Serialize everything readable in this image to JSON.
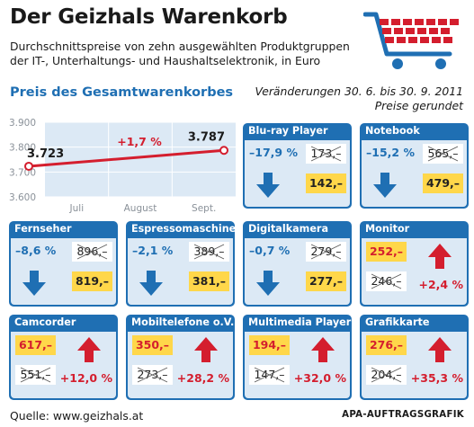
{
  "header": {
    "title": "Der Geizhals Warenkorb",
    "subtitle": "Durchschnittspreise von zehn ausgewählten Produktgruppen der IT-, Unterhaltungs- und Haushaltselektronik, in Euro",
    "chart_heading": "Preis des Gesamtwarenkorbes",
    "change_period": "Veränderungen 30. 6. bis 30. 9. 2011",
    "rounding_note": "Preise gerundet"
  },
  "colors": {
    "blue": "#1f6fb3",
    "light_blue": "#dce9f5",
    "red": "#d41e2e",
    "yellow": "#ffd74a"
  },
  "chart_data": {
    "type": "line",
    "x": [
      "Juli",
      "August",
      "Sept."
    ],
    "y_ticks": [
      "3.900",
      "3.800",
      "3.700",
      "3.600"
    ],
    "ylim": [
      3600,
      3900
    ],
    "series": [
      {
        "points": [
          {
            "x": "Juli",
            "y": 3723
          },
          {
            "x": "Sept.",
            "y": 3787
          }
        ]
      }
    ],
    "data_labels": {
      "start": "3.723",
      "end": "3.787"
    },
    "change_label": "+1,7 %",
    "grid": true
  },
  "products": [
    {
      "name": "Blu-ray Player",
      "change": "–17,9 %",
      "old": "173,–",
      "new": "142,–",
      "direction": "down"
    },
    {
      "name": "Notebook",
      "change": "–15,2 %",
      "old": "565,–",
      "new": "479,–",
      "direction": "down"
    },
    {
      "name": "Fernseher",
      "change": "–8,6 %",
      "old": "896,–",
      "new": "819,–",
      "direction": "down"
    },
    {
      "name": "Espressomaschine",
      "change": "–2,1 %",
      "old": "389,–",
      "new": "381,–",
      "direction": "down"
    },
    {
      "name": "Digitalkamera",
      "change": "–0,7 %",
      "old": "279,–",
      "new": "277,–",
      "direction": "down"
    },
    {
      "name": "Monitor",
      "change": "+2,4 %",
      "old": "246,–",
      "new": "252,–",
      "direction": "up"
    },
    {
      "name": "Camcorder",
      "change": "+12,0 %",
      "old": "551,–",
      "new": "617,–",
      "direction": "up"
    },
    {
      "name": "Mobiltelefone o.V.",
      "change": "+28,2 %",
      "old": "273,–",
      "new": "350,–",
      "direction": "up"
    },
    {
      "name": "Multimedia Player",
      "change": "+32,0 %",
      "old": "147,–",
      "new": "194,–",
      "direction": "up"
    },
    {
      "name": "Grafikkarte",
      "change": "+35,3 %",
      "old": "204,–",
      "new": "276,–",
      "direction": "up"
    }
  ],
  "footer": {
    "source": "Quelle: www.geizhals.at",
    "credit": "APA-AUFTRAGSGRAFIK"
  }
}
